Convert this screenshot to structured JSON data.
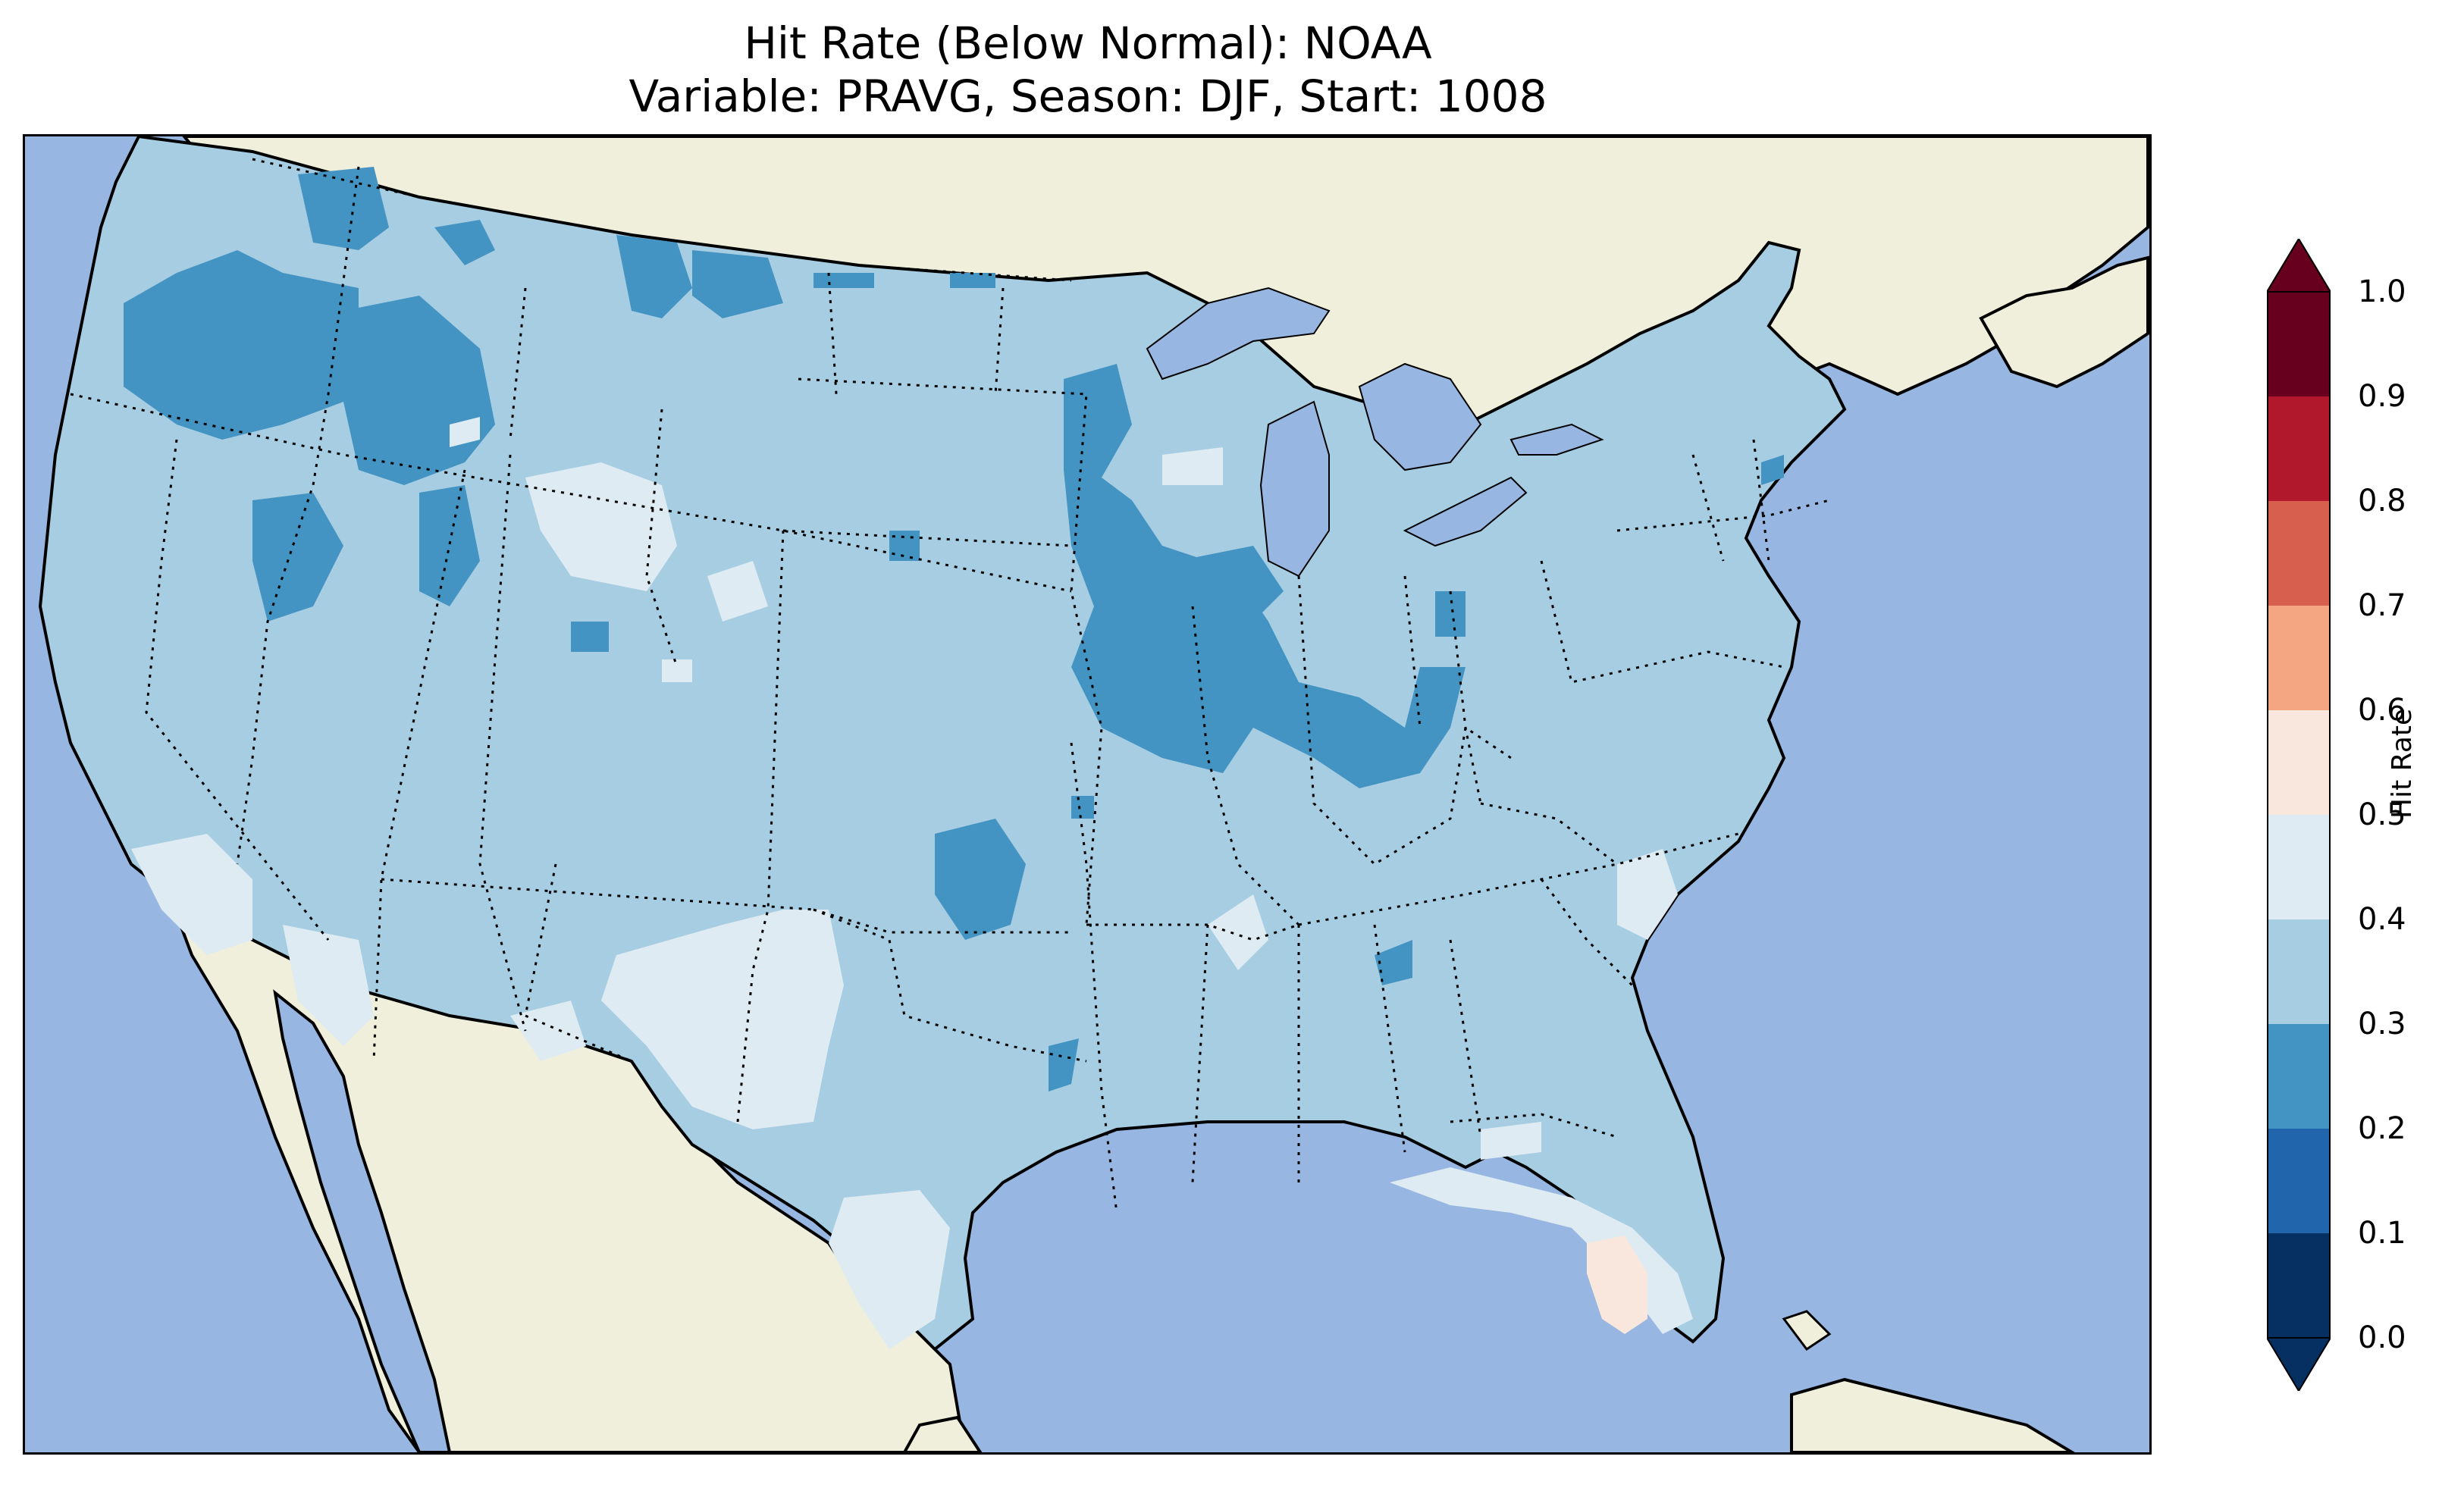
{
  "title": {
    "line1": "Hit Rate (Below Normal): NOAA",
    "line2": "Variable: PRAVG, Season: DJF, Start: 1008"
  },
  "colors": {
    "ocean": "#97b6e1",
    "land": "#efefdb",
    "lake": "#97b6e1"
  },
  "colorbar": {
    "label": "Hit Rate",
    "ticks": [
      "0.0",
      "0.1",
      "0.2",
      "0.3",
      "0.4",
      "0.5",
      "0.6",
      "0.7",
      "0.8",
      "0.9",
      "1.0"
    ],
    "bins": [
      {
        "range": [
          0.0,
          0.1
        ],
        "color": "#053061"
      },
      {
        "range": [
          0.1,
          0.2
        ],
        "color": "#2166ac"
      },
      {
        "range": [
          0.2,
          0.3
        ],
        "color": "#4393c3"
      },
      {
        "range": [
          0.3,
          0.4
        ],
        "color": "#a6cde2"
      },
      {
        "range": [
          0.4,
          0.5
        ],
        "color": "#deebf2"
      },
      {
        "range": [
          0.5,
          0.6
        ],
        "color": "#f9e6dc"
      },
      {
        "range": [
          0.6,
          0.7
        ],
        "color": "#f4a582"
      },
      {
        "range": [
          0.7,
          0.8
        ],
        "color": "#d6604d"
      },
      {
        "range": [
          0.8,
          0.9
        ],
        "color": "#b2182b"
      },
      {
        "range": [
          0.9,
          1.0
        ],
        "color": "#67001f"
      }
    ],
    "extend": "both"
  }
}
